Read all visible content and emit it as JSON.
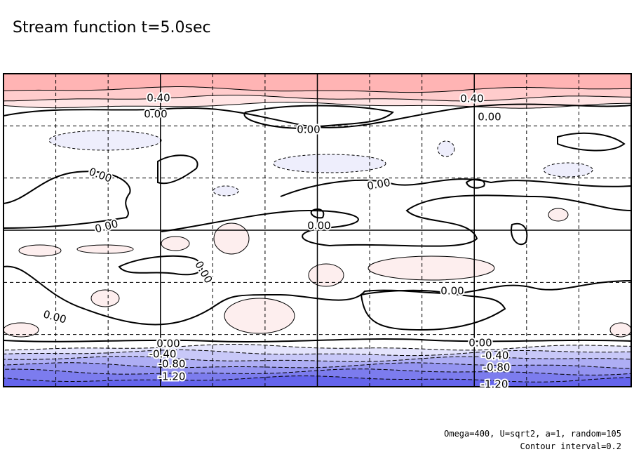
{
  "chart_data": {
    "type": "contour",
    "title": "Stream function t=5.0sec",
    "contour_labels": [
      {
        "value": 0.4,
        "label": "0.40"
      },
      {
        "value": 0.4,
        "label": "0.40"
      },
      {
        "value": 0,
        "label": "0.00"
      },
      {
        "value": 0,
        "label": "0.00"
      },
      {
        "value": 0,
        "label": "0.00"
      },
      {
        "value": 0,
        "label": "0.00"
      },
      {
        "value": 0,
        "label": "0.00"
      },
      {
        "value": 0,
        "label": "0.00"
      },
      {
        "value": 0,
        "label": "0.00"
      },
      {
        "value": 0,
        "label": "0.00"
      },
      {
        "value": 0,
        "label": "0.00"
      },
      {
        "value": 0,
        "label": "0.00"
      },
      {
        "value": 0,
        "label": "0.00"
      },
      {
        "value": 0,
        "label": "0.00"
      },
      {
        "value": -0.4,
        "label": "-0.40"
      },
      {
        "value": -0.4,
        "label": "-0.40"
      },
      {
        "value": -0.8,
        "label": "-0.80"
      },
      {
        "value": -0.8,
        "label": "-0.80"
      },
      {
        "value": -1.2,
        "label": "-1.20"
      },
      {
        "value": -1.2,
        "label": "-1.20"
      }
    ],
    "annotations": [
      "Omega=400, U=sqrt2, a=1, random=105",
      "Contour interval=0.2"
    ]
  }
}
